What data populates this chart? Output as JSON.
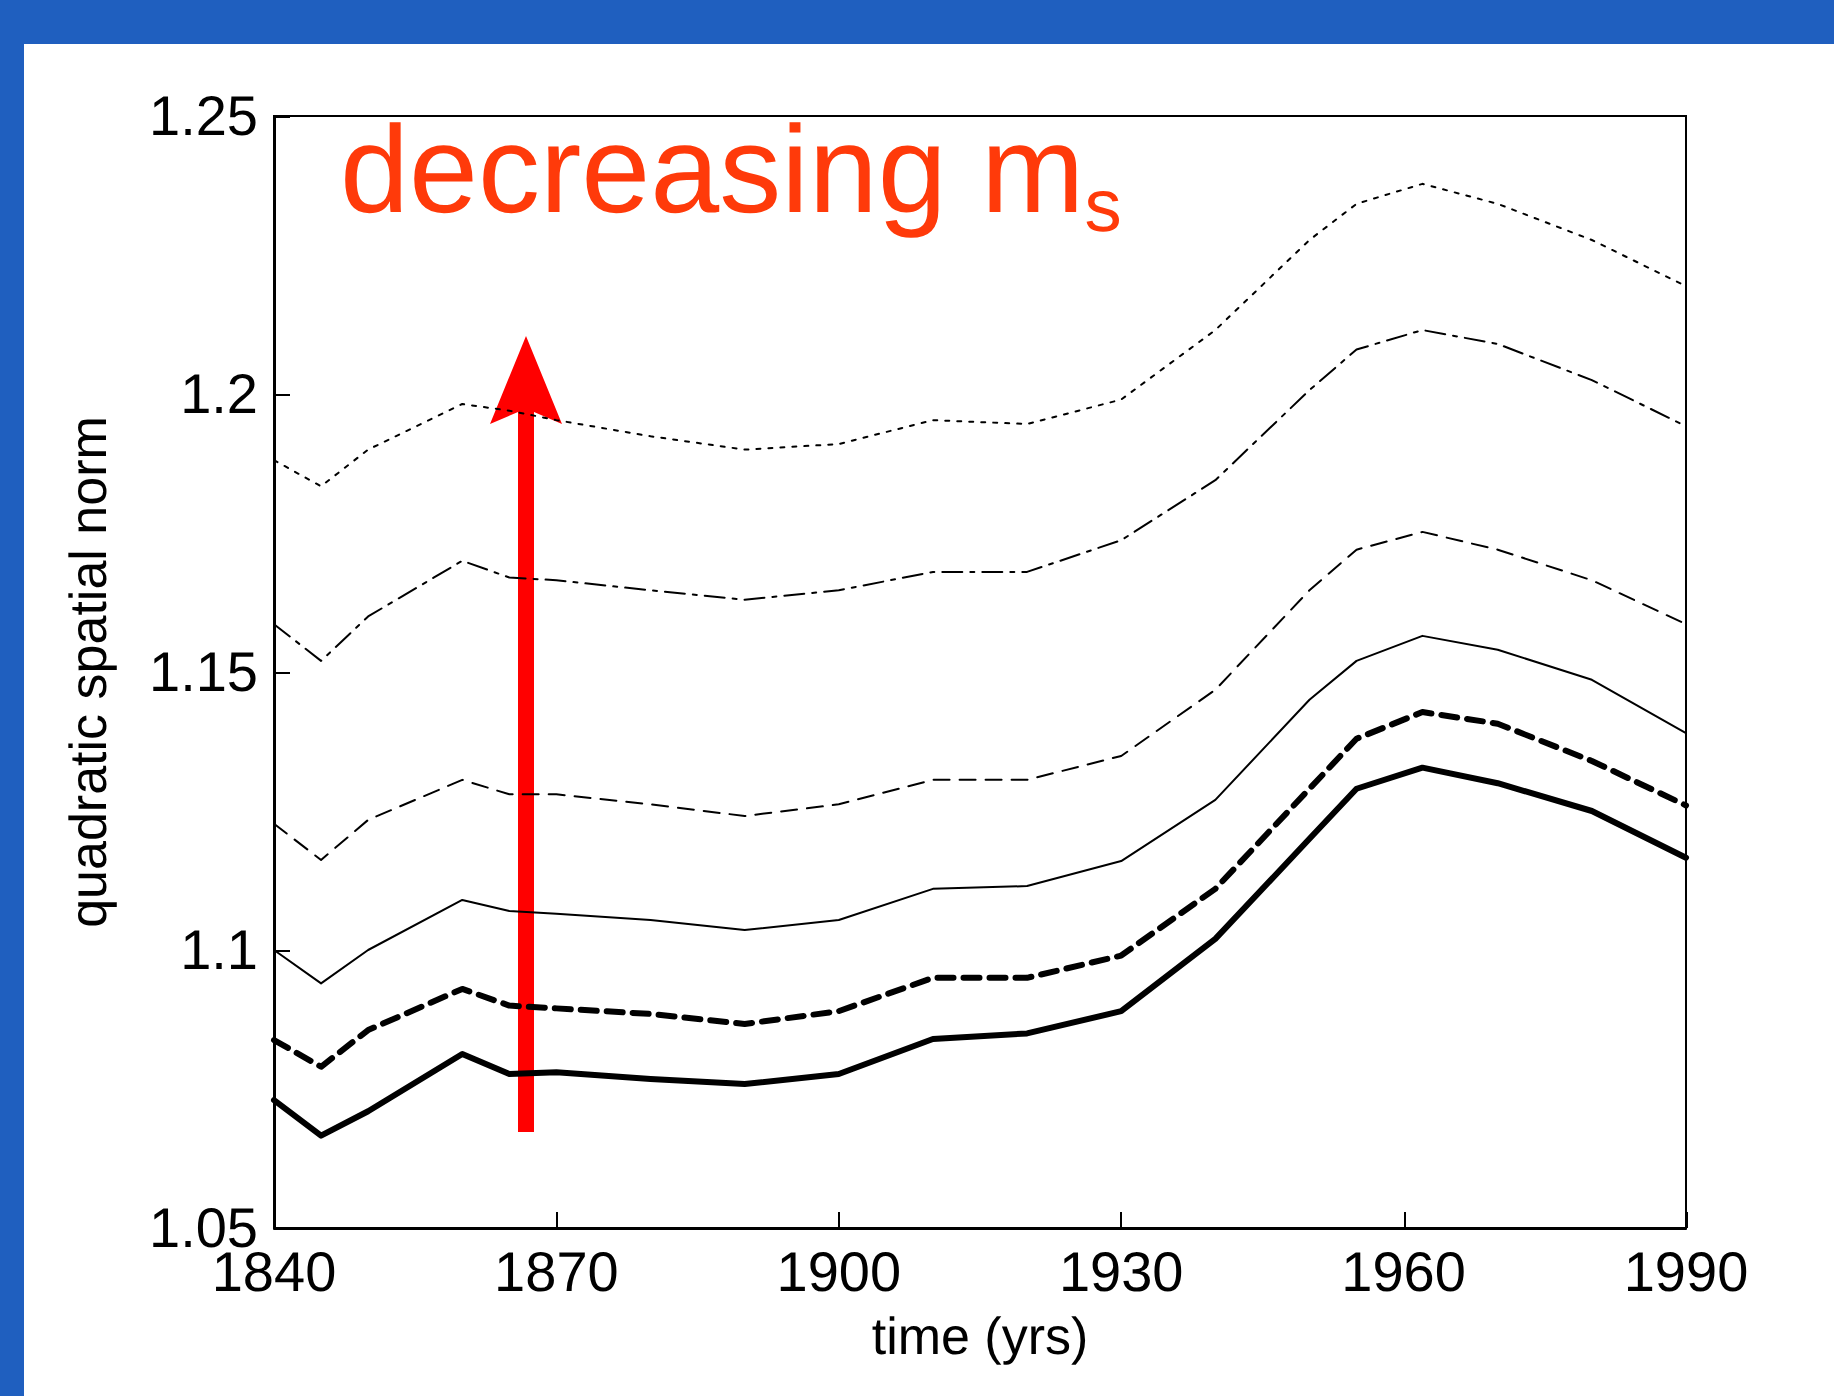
{
  "chart_data": {
    "type": "line",
    "xlabel": "time (yrs)",
    "ylabel": "quadratic spatial norm",
    "annotations": [
      "decreasing m$_{s}$"
    ],
    "x": [
      1840,
      1845,
      1850,
      1860,
      1865,
      1870,
      1880,
      1890,
      1900,
      1910,
      1920,
      1930,
      1940,
      1950,
      1955,
      1962,
      1970,
      1980,
      1990
    ],
    "series": [
      {
        "color": "#000000",
        "line_style": "solid",
        "values": [
          1.073,
          1.0666,
          1.071,
          1.0813,
          1.0777,
          1.078,
          1.0768,
          1.0759,
          1.0777,
          1.084,
          1.085,
          1.089,
          1.102,
          1.12,
          1.129,
          1.1328,
          1.13,
          1.125,
          1.1166
        ]
      },
      {
        "color": "#000000",
        "line_style": "dashed",
        "values": [
          1.0838,
          1.079,
          1.0856,
          1.093,
          1.09,
          1.0895,
          1.0885,
          1.0867,
          1.089,
          1.095,
          1.095,
          1.099,
          1.111,
          1.129,
          1.138,
          1.1428,
          1.1407,
          1.134,
          1.126
        ]
      },
      {
        "color": "#000000",
        "line_style": "solid",
        "values": [
          1.1,
          1.094,
          1.1,
          1.109,
          1.107,
          1.1065,
          1.1054,
          1.1036,
          1.1054,
          1.111,
          1.1115,
          1.116,
          1.127,
          1.145,
          1.152,
          1.1565,
          1.154,
          1.1486,
          1.139
        ]
      },
      {
        "color": "#000000",
        "line_style": "dashed",
        "values": [
          1.1227,
          1.1162,
          1.1234,
          1.1306,
          1.128,
          1.128,
          1.1262,
          1.1241,
          1.1262,
          1.1306,
          1.1306,
          1.1349,
          1.1468,
          1.1647,
          1.172,
          1.1752,
          1.172,
          1.1665,
          1.1586
        ]
      },
      {
        "color": "#000000",
        "line_style": "dashdot",
        "values": [
          1.1586,
          1.152,
          1.16,
          1.17,
          1.167,
          1.1665,
          1.1647,
          1.163,
          1.1647,
          1.168,
          1.168,
          1.1737,
          1.1845,
          1.2007,
          1.208,
          1.2115,
          1.209,
          1.2025,
          1.1942
        ]
      },
      {
        "color": "#000000",
        "line_style": "dotted",
        "values": [
          1.1881,
          1.1834,
          1.19,
          1.1982,
          1.197,
          1.1953,
          1.1924,
          1.19,
          1.191,
          1.1953,
          1.1946,
          1.199,
          1.2115,
          1.2277,
          1.2342,
          1.2378,
          1.2342,
          1.2277,
          1.2194
        ]
      }
    ],
    "xlim": [
      1840,
      1990
    ],
    "xticks": [
      1840,
      1870,
      1900,
      1930,
      1960,
      1990
    ],
    "ylim": [
      1.05,
      1.25
    ],
    "yticks": [
      1.05,
      1.1,
      1.15,
      1.2,
      1.25
    ],
    "grid": false,
    "marker": "none"
  }
}
